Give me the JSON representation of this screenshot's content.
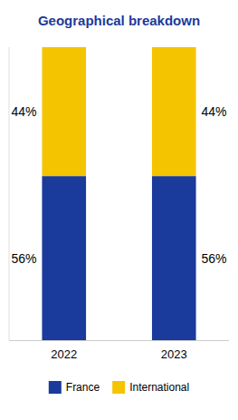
{
  "chart_data": {
    "type": "bar",
    "title": "Geographical breakdown",
    "stacked": true,
    "categories": [
      "2022",
      "2023"
    ],
    "series": [
      {
        "name": "France",
        "color": "#1a3a9c",
        "values": [
          56,
          56
        ],
        "value_labels": [
          "56%",
          "56%"
        ]
      },
      {
        "name": "International",
        "color": "#f5c400",
        "values": [
          44,
          44
        ],
        "value_labels": [
          "44%",
          "44%"
        ]
      }
    ],
    "ylim": [
      0,
      100
    ],
    "grid": false,
    "legend": "bottom",
    "data_labels": true,
    "tick_labels": "x",
    "title_color": "#1a3a9c"
  }
}
